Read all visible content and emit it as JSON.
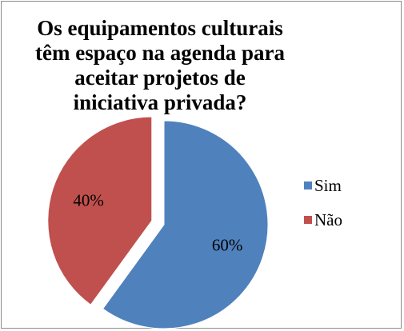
{
  "chart_data": {
    "type": "pie",
    "title": "Os equipamentos culturais têm espaço na agenda para aceitar projetos de iniciativa privada?",
    "categories": [
      "Sim",
      "Não"
    ],
    "values": [
      60,
      40
    ],
    "data_labels": [
      "60%",
      "40%"
    ],
    "colors": [
      "#4f81bd",
      "#c0504d"
    ],
    "exploded": "Não",
    "legend_position": "right"
  }
}
